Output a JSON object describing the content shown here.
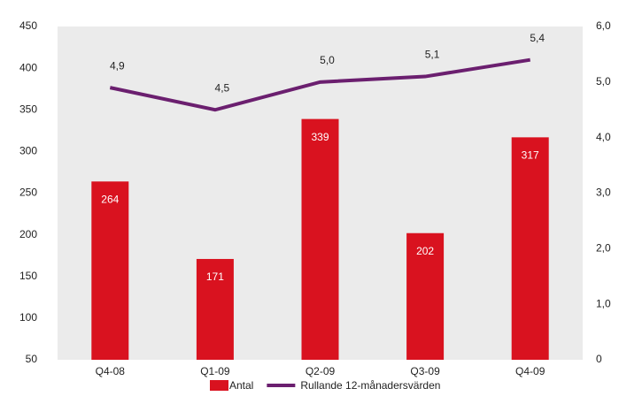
{
  "chart_data": {
    "type": "bar-line",
    "categories": [
      "Q4-08",
      "Q1-09",
      "Q2-09",
      "Q3-09",
      "Q4-09"
    ],
    "series": [
      {
        "name": "Antal",
        "type": "bar",
        "color": "#d9121f",
        "values": [
          264,
          171,
          339,
          202,
          317
        ]
      },
      {
        "name": "Rullande 12-månadersvärden",
        "type": "line",
        "axis": "y2",
        "color": "#6b1f6f",
        "values": [
          4.9,
          4.5,
          5.0,
          5.1,
          5.4
        ],
        "value_labels": [
          "4,9",
          "4,5",
          "5,0",
          "5,1",
          "5,4"
        ]
      }
    ],
    "ylim": [
      50,
      450
    ],
    "yticks": [
      50,
      100,
      150,
      200,
      250,
      300,
      350,
      400,
      450
    ],
    "y2lim": [
      0,
      6
    ],
    "y2ticks": [
      0,
      {
        "value": 1,
        "label": "1,0"
      },
      {
        "value": 2,
        "label": "2,0"
      },
      {
        "value": 3,
        "label": "3,0"
      },
      {
        "value": 4,
        "label": "4,0"
      },
      {
        "value": 5,
        "label": "5,0"
      },
      {
        "value": 6,
        "label": "6,0"
      }
    ],
    "legend": "bottom"
  }
}
